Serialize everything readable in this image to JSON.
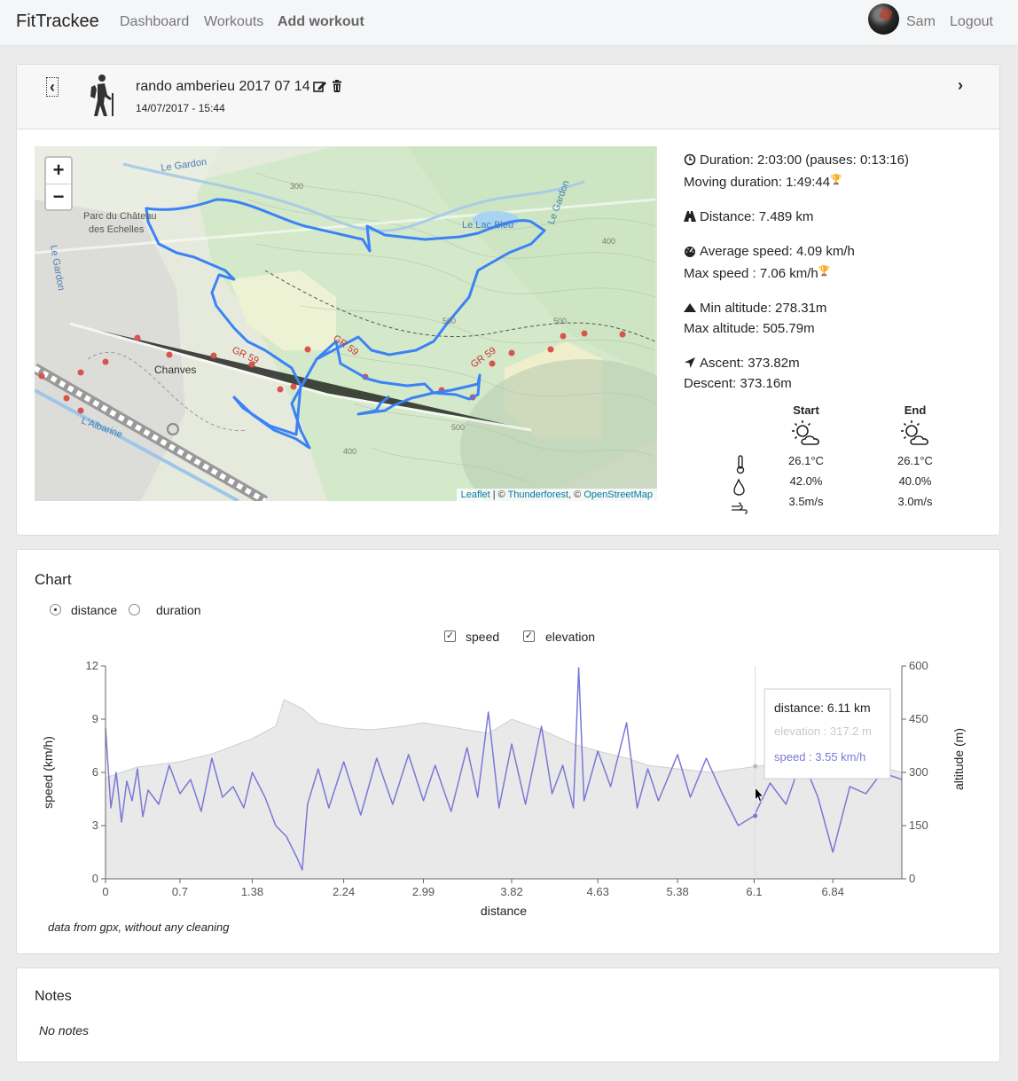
{
  "nav": {
    "brand": "FitTrackee",
    "links": [
      "Dashboard",
      "Workouts",
      "Add workout"
    ],
    "user": "Sam",
    "logout": "Logout"
  },
  "workout": {
    "title": "rando amberieu 2017 07 14",
    "date": "14/07/2017 - 15:44",
    "prev_icon": "chevron-left-icon",
    "next_icon": "chevron-right-icon"
  },
  "map": {
    "zoom_in": "+",
    "zoom_out": "−",
    "labels": [
      "Le Gardon",
      "Parc du Château",
      "des Echelles",
      "Le Gardon",
      "Le Lac Bleu",
      "Le Gardon",
      "Chanves",
      "L'Albarine",
      "GR 59",
      "GR 59",
      "GR 59",
      "300",
      "400",
      "500",
      "500",
      "400",
      "500"
    ],
    "attribution": {
      "leaflet": "Leaflet",
      "sep1": " | © ",
      "tf": "Thunderforest",
      "sep2": ", © ",
      "osm": "OpenStreetMap"
    },
    "route_color": "#3b82f6"
  },
  "stats": {
    "duration": "Duration: 2:03:00 (pauses: 0:13:16)",
    "moving": "Moving duration: 1:49:44",
    "distance": "Distance: 7.489 km",
    "avg_speed": "Average speed: 4.09 km/h",
    "max_speed": "Max speed : 7.06 km/h",
    "min_alt": "Min altitude: 278.31m",
    "max_alt": "Max altitude: 505.79m",
    "ascent": "Ascent: 373.82m",
    "descent": "Descent: 373.16m"
  },
  "weather": {
    "start": {
      "label": "Start",
      "temp": "26.1°C",
      "humidity": "42.0%",
      "wind": "3.5m/s"
    },
    "end": {
      "label": "End",
      "temp": "26.1°C",
      "humidity": "40.0%",
      "wind": "3.0m/s"
    }
  },
  "chart_section": {
    "title": "Chart",
    "radio_distance": "distance",
    "radio_duration": "duration",
    "check_speed": "speed",
    "check_elevation": "elevation",
    "tooltip": {
      "distance": "distance: 6.11 km",
      "elevation": "elevation : 317.2 m",
      "speed": "speed : 3.55 km/h"
    },
    "footnote": "data from gpx, without any cleaning"
  },
  "chart_data": {
    "type": "line",
    "xlabel": "distance",
    "ylabel_left": "speed (km/h)",
    "ylabel_right": "altitude (m)",
    "x_ticks": [
      "0",
      "0.7",
      "1.38",
      "2.24",
      "2.99",
      "3.82",
      "4.63",
      "5.38",
      "6.1",
      "6.84"
    ],
    "y_left_ticks": [
      "0",
      "3",
      "6",
      "9",
      "12"
    ],
    "y_right_ticks": [
      "0",
      "150",
      "300",
      "450",
      "600"
    ],
    "xlim": [
      0,
      7.489
    ],
    "ylim_left": [
      0,
      12
    ],
    "ylim_right": [
      0,
      600
    ],
    "series": [
      {
        "name": "elevation",
        "color": "#cccccc",
        "x": [
          0,
          0.3,
          0.7,
          1.0,
          1.38,
          1.6,
          1.68,
          1.85,
          2.0,
          2.24,
          2.5,
          2.75,
          2.99,
          3.3,
          3.6,
          3.82,
          4.1,
          4.4,
          4.63,
          4.9,
          5.1,
          5.38,
          5.7,
          6.0,
          6.11,
          6.5,
          6.84,
          7.2,
          7.489
        ],
        "y": [
          285,
          315,
          330,
          352,
          395,
          430,
          505,
          480,
          440,
          425,
          420,
          428,
          440,
          425,
          410,
          450,
          420,
          380,
          360,
          340,
          320,
          310,
          300,
          312,
          317,
          330,
          340,
          320,
          300
        ]
      },
      {
        "name": "speed",
        "color": "#7b78d6",
        "x": [
          0,
          0.05,
          0.1,
          0.15,
          0.2,
          0.25,
          0.3,
          0.35,
          0.4,
          0.5,
          0.6,
          0.7,
          0.8,
          0.9,
          1.0,
          1.1,
          1.2,
          1.3,
          1.38,
          1.5,
          1.6,
          1.7,
          1.8,
          1.85,
          1.9,
          2.0,
          2.1,
          2.24,
          2.4,
          2.55,
          2.7,
          2.85,
          2.99,
          3.1,
          3.25,
          3.4,
          3.5,
          3.6,
          3.7,
          3.82,
          3.95,
          4.1,
          4.2,
          4.3,
          4.4,
          4.45,
          4.5,
          4.63,
          4.75,
          4.9,
          5.0,
          5.1,
          5.2,
          5.38,
          5.5,
          5.65,
          5.8,
          5.95,
          6.1,
          6.25,
          6.4,
          6.55,
          6.7,
          6.84,
          7.0,
          7.15,
          7.3,
          7.489
        ],
        "y": [
          8.5,
          4.0,
          6.0,
          3.2,
          5.5,
          4.4,
          6.2,
          3.5,
          5.0,
          4.2,
          6.4,
          4.8,
          5.6,
          3.8,
          6.8,
          4.6,
          5.2,
          4.0,
          6.0,
          4.6,
          3.0,
          2.4,
          1.2,
          0.5,
          4.2,
          6.2,
          4.0,
          6.6,
          3.6,
          6.8,
          4.2,
          7.0,
          4.4,
          6.4,
          3.8,
          7.4,
          4.6,
          9.4,
          4.0,
          7.6,
          4.2,
          8.6,
          4.8,
          6.4,
          4.0,
          11.9,
          4.4,
          7.2,
          5.2,
          8.8,
          4.0,
          6.2,
          4.4,
          7.0,
          4.6,
          6.8,
          4.8,
          3.0,
          3.55,
          5.4,
          4.2,
          6.8,
          4.6,
          1.5,
          5.2,
          4.8,
          6.0,
          5.6
        ]
      }
    ],
    "legend": "top",
    "grid": false
  },
  "notes": {
    "title": "Notes",
    "text": "No notes"
  }
}
